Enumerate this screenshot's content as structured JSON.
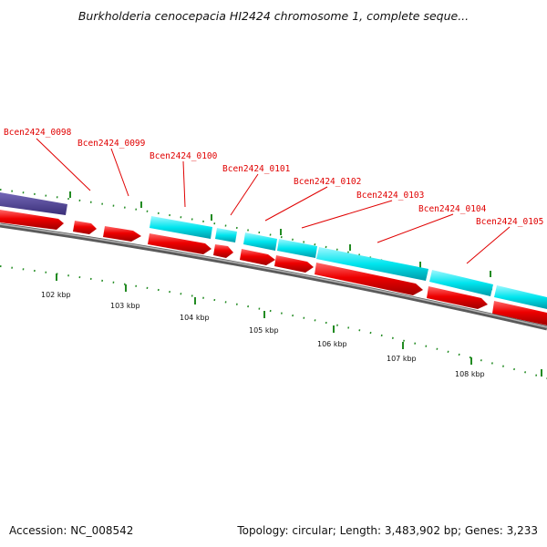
{
  "header": {
    "title": "Burkholderia cenocepacia HI2424 chromosome 1, complete seque..."
  },
  "footer": {
    "accession": "Accession: NC_008542",
    "summary": "Topology: circular; Length: 3,483,902 bp; Genes: 3,233"
  },
  "gene_labels": [
    "Bcen2424_0098",
    "Bcen2424_0099",
    "Bcen2424_0100",
    "Bcen2424_0101",
    "Bcen2424_0102",
    "Bcen2424_0103",
    "Bcen2424_0104",
    "Bcen2424_0105"
  ],
  "scale_labels": [
    "102 kbp",
    "103 kbp",
    "104 kbp",
    "105 kbp",
    "106 kbp",
    "107 kbp",
    "108 kbp"
  ],
  "colors": {
    "forward_feature": "#00e5ee",
    "reverse_feature": "#ee0000",
    "rna_feature": "#4b3c8c",
    "backbone": "#7a7a7a",
    "ticks": "#228b22",
    "label": "#e00000"
  }
}
